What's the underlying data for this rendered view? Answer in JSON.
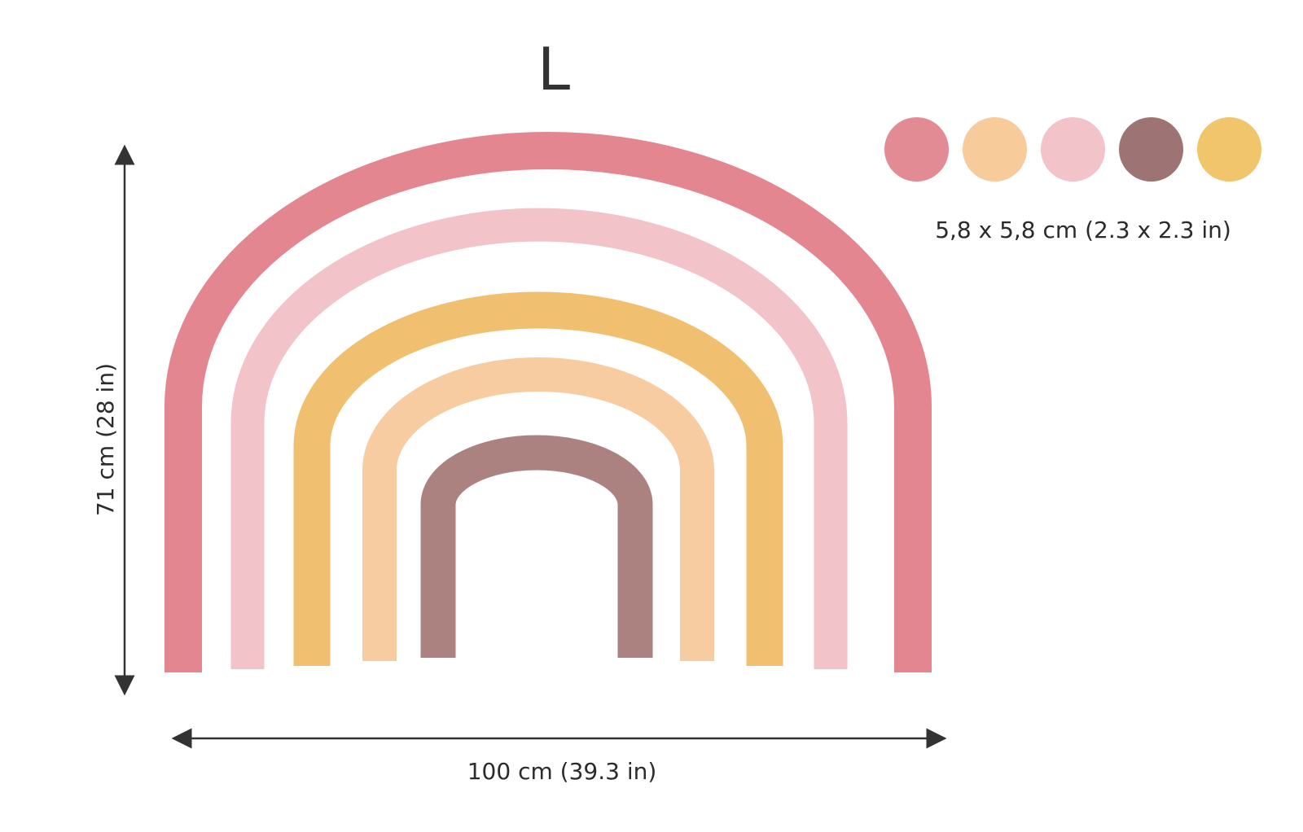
{
  "size": "L",
  "dots": {
    "label": "5,8 x 5,8 cm (2.3 x 2.3 in)",
    "colors": [
      "#e38b95",
      "#f8cb9b",
      "#f2c3c8",
      "#9d7473",
      "#f1c56b"
    ]
  },
  "dimensions": {
    "height": "71 cm (28 in)",
    "width": "100 cm (39.3 in)"
  },
  "arcs": [
    {
      "name": "arc-pink-red",
      "color": "#e27f8a"
    },
    {
      "name": "arc-light-pink",
      "color": "#f1c0c6"
    },
    {
      "name": "arc-mustard",
      "color": "#efbd68"
    },
    {
      "name": "arc-peach",
      "color": "#f8c99c"
    },
    {
      "name": "arc-mauve-brown",
      "color": "#a67b79"
    }
  ]
}
